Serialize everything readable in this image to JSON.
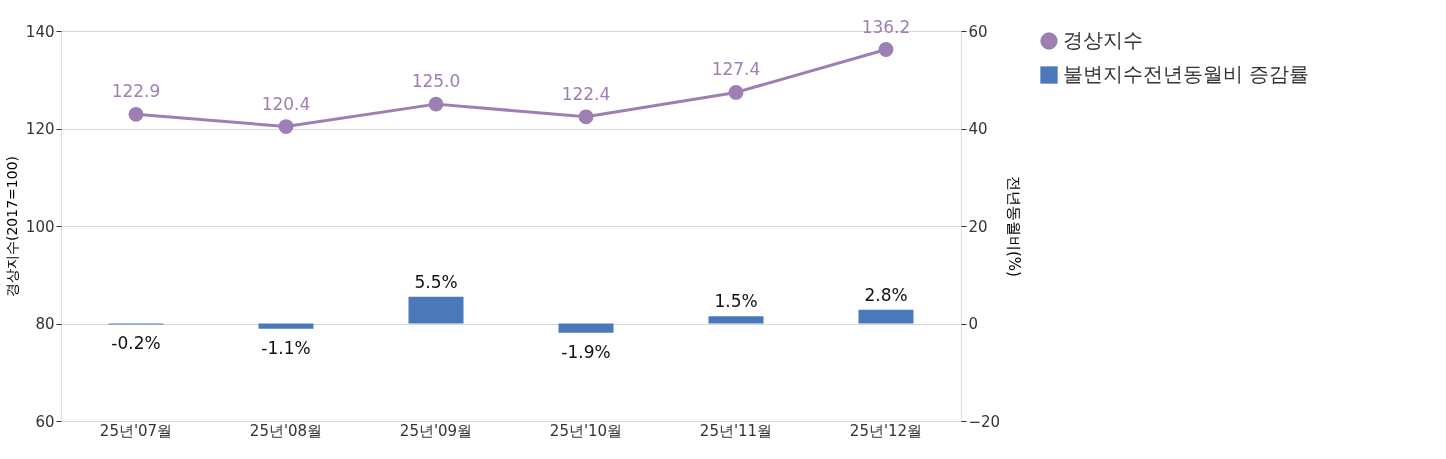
{
  "chart_data": {
    "type": "bar",
    "ylabel": "경상지수(2017=100)",
    "y2label": "전년동월비(%)",
    "categories": [
      "25년'07월",
      "25년'08월",
      "25년'09월",
      "25년'10월",
      "25년'11월",
      "25년'12월"
    ],
    "series": [
      {
        "name": "경상지수",
        "type": "line",
        "color": "#9e7fb4",
        "marker": "circle",
        "values": [
          122.9,
          120.4,
          125.0,
          122.4,
          127.4,
          136.2
        ],
        "value_labels": [
          "122.9",
          "120.4",
          "125.0",
          "122.4",
          "127.4",
          "136.2"
        ]
      },
      {
        "name": "불변지수전년동월비 증감률",
        "axis": "y2",
        "color": "#4a78b8",
        "values": [
          -0.2,
          -1.1,
          5.5,
          -1.9,
          1.5,
          2.8
        ],
        "value_labels": [
          "-0.2%",
          "-1.1%",
          "5.5%",
          "-1.9%",
          "1.5%",
          "2.8%"
        ]
      }
    ],
    "ylim": [
      60,
      140
    ],
    "yticks": [
      60,
      80,
      100,
      120,
      140
    ],
    "y2lim": [
      -20,
      60
    ],
    "y2ticks": [
      {
        "value": -20,
        "label": "−20"
      },
      0,
      20,
      40,
      60
    ],
    "grid": "y",
    "legend": "top right"
  }
}
